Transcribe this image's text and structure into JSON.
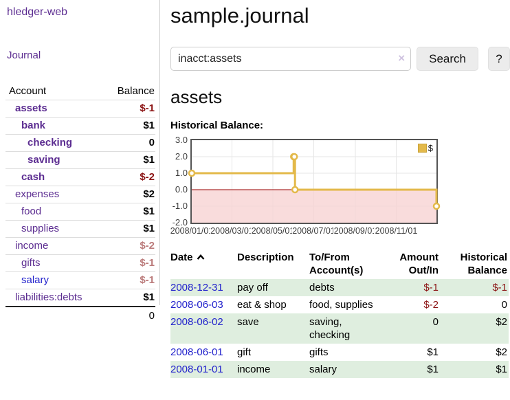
{
  "colors": {
    "link_purple": "#5c2d91",
    "link_blue": "#2222cc",
    "negative": "#8b1313",
    "negative_faded": "#bb7b7b",
    "row_green": "#dfeedf",
    "series_gold": "#e3b94a",
    "zero_line_red": "#990000",
    "below_zero_pink": "#f8d3d3",
    "grid": "#e6e6e6"
  },
  "sidebar": {
    "app_title": "hledger-web",
    "journal_link": "Journal",
    "accounts": {
      "header": {
        "account": "Account",
        "balance": "Balance"
      },
      "rows": [
        {
          "name": "assets",
          "balance": "$-1",
          "indent": 1,
          "bold": true,
          "balance_class": "neg"
        },
        {
          "name": "bank",
          "balance": "$1",
          "indent": 2,
          "bold": true,
          "balance_class": ""
        },
        {
          "name": "checking",
          "balance": "0",
          "indent": 3,
          "bold": true,
          "balance_class": ""
        },
        {
          "name": "saving",
          "balance": "$1",
          "indent": 3,
          "bold": true,
          "balance_class": ""
        },
        {
          "name": "cash",
          "balance": "$-2",
          "indent": 2,
          "bold": true,
          "balance_class": "neg"
        },
        {
          "name": "expenses",
          "balance": "$2",
          "indent": 1,
          "bold": false,
          "balance_class": ""
        },
        {
          "name": "food",
          "balance": "$1",
          "indent": 2,
          "bold": false,
          "balance_class": ""
        },
        {
          "name": "supplies",
          "balance": "$1",
          "indent": 2,
          "bold": false,
          "balance_class": ""
        },
        {
          "name": "income",
          "balance": "$-2",
          "indent": 1,
          "bold": false,
          "balance_class": "negfaded"
        },
        {
          "name": "gifts",
          "balance": "$-1",
          "indent": 2,
          "bold": false,
          "balance_class": "negfaded"
        },
        {
          "name": "salary",
          "balance": "$-1",
          "indent": 2,
          "bold": false,
          "balance_class": "negfaded",
          "blue": true
        },
        {
          "name": "liabilities:debts",
          "balance": "$1",
          "indent": 1,
          "bold": false,
          "balance_class": ""
        }
      ],
      "total": "0"
    }
  },
  "main": {
    "title": "sample.journal",
    "search": {
      "value": "inacct:assets",
      "clear_label": "×",
      "search_button": "Search",
      "help_button": "?"
    },
    "account_heading": "assets",
    "chart_heading": "Historical Balance:"
  },
  "chart_data": {
    "type": "line",
    "step": true,
    "title": "Historical Balance of assets",
    "legend": [
      {
        "label": "$",
        "color": "#e3b94a"
      }
    ],
    "x_ticks": [
      "2008/01/01",
      "2008/03/01",
      "2008/05/01",
      "2008/07/01",
      "2008/09/01",
      "2008/11/01"
    ],
    "x_tick_days": [
      0,
      60,
      121,
      182,
      244,
      305
    ],
    "x_range_days": 365,
    "y_ticks": [
      "3.0",
      "2.0",
      "1.0",
      "0.0",
      "-1.0",
      "-2.0"
    ],
    "y_tick_values": [
      3,
      2,
      1,
      0,
      -1,
      -2
    ],
    "ylim": [
      -2,
      3
    ],
    "grid": true,
    "legend_position": "top-right",
    "series": [
      {
        "name": "$",
        "points": [
          [
            "2008-01-01",
            1
          ],
          [
            "2008-06-01",
            2
          ],
          [
            "2008-06-02",
            2
          ],
          [
            "2008-06-03",
            0
          ],
          [
            "2008-12-31",
            -1
          ]
        ]
      }
    ]
  },
  "register": {
    "headers": {
      "date": "Date",
      "description": "Description",
      "accounts": "To/From Account(s)",
      "amount": "Amount Out/In",
      "balance": "Historical Balance"
    },
    "rows": [
      {
        "date": "2008-12-31",
        "description": "pay off",
        "accounts": "debts",
        "amount": "$-1",
        "amount_neg": true,
        "balance": "$-1",
        "balance_neg": true
      },
      {
        "date": "2008-06-03",
        "description": "eat & shop",
        "accounts": "food, supplies",
        "amount": "$-2",
        "amount_neg": true,
        "balance": "0",
        "balance_neg": false
      },
      {
        "date": "2008-06-02",
        "description": "save",
        "accounts": "saving, checking",
        "amount": "0",
        "amount_neg": false,
        "balance": "$2",
        "balance_neg": false
      },
      {
        "date": "2008-06-01",
        "description": "gift",
        "accounts": "gifts",
        "amount": "$1",
        "amount_neg": false,
        "balance": "$2",
        "balance_neg": false
      },
      {
        "date": "2008-01-01",
        "description": "income",
        "accounts": "salary",
        "amount": "$1",
        "amount_neg": false,
        "balance": "$1",
        "balance_neg": false
      }
    ]
  }
}
